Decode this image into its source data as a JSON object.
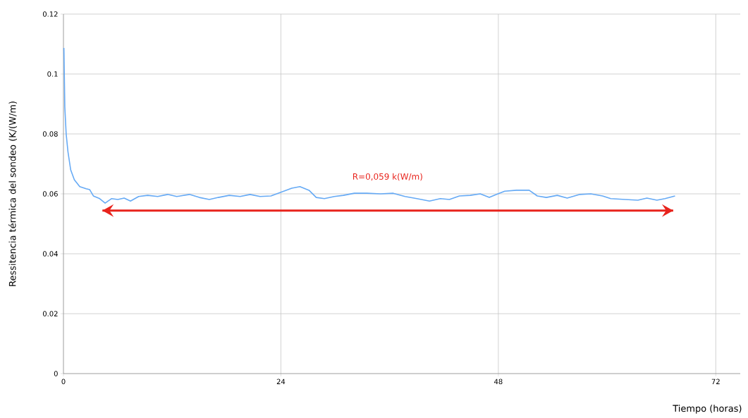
{
  "chart_data": {
    "type": "line",
    "xlabel": "Tiempo (horas)",
    "ylabel": "Ressitencia térmica del sondeo (K/(W/m)",
    "x": [
      0.05,
      0.15,
      0.3,
      0.5,
      0.8,
      1.2,
      1.8,
      2.5,
      2.9,
      3.3,
      4.0,
      4.6,
      5.3,
      6.0,
      6.7,
      7.4,
      8.3,
      9.3,
      10.4,
      11.5,
      12.5,
      13.9,
      15.0,
      16.1,
      17.1,
      18.3,
      19.5,
      20.6,
      21.7,
      22.9,
      24.0,
      25.2,
      26.1,
      27.1,
      27.9,
      28.8,
      29.9,
      30.9,
      32.1,
      33.5,
      35.0,
      36.4,
      37.7,
      39.0,
      40.4,
      41.6,
      42.6,
      43.7,
      44.9,
      46.0,
      47.0,
      47.8,
      48.7,
      50.0,
      51.4,
      52.3,
      53.3,
      54.5,
      55.6,
      57.0,
      58.2,
      59.5,
      60.4,
      62.0,
      63.4,
      64.4,
      65.5,
      66.4,
      67.5
    ],
    "series": [
      {
        "color": "#66aaf5",
        "values": [
          0.1087,
          0.089,
          0.08,
          0.074,
          0.068,
          0.0647,
          0.0624,
          0.0617,
          0.0614,
          0.0593,
          0.0584,
          0.0569,
          0.0584,
          0.0581,
          0.0586,
          0.0576,
          0.0591,
          0.0595,
          0.0591,
          0.0598,
          0.0591,
          0.0598,
          0.0588,
          0.0581,
          0.0588,
          0.0595,
          0.0591,
          0.0598,
          0.0591,
          0.0593,
          0.0605,
          0.0619,
          0.0624,
          0.0612,
          0.0588,
          0.0584,
          0.0591,
          0.0595,
          0.0602,
          0.0602,
          0.06,
          0.0602,
          0.0591,
          0.0584,
          0.0576,
          0.0584,
          0.0581,
          0.0593,
          0.0595,
          0.06,
          0.0588,
          0.0598,
          0.0609,
          0.0612,
          0.0612,
          0.0593,
          0.0588,
          0.0595,
          0.0586,
          0.0598,
          0.06,
          0.0593,
          0.0584,
          0.0581,
          0.0579,
          0.0586,
          0.0579,
          0.0584,
          0.0593
        ]
      },
      {
        "color": "#e8231c",
        "line_style": "solid",
        "x": [
          4.3,
          67.3
        ],
        "values": [
          0.0544,
          0.0544
        ]
      }
    ],
    "xlim": [
      0,
      74.7
    ],
    "ylim": [
      0,
      0.12
    ],
    "xticks": [
      0,
      24,
      48,
      72
    ],
    "yticks": [
      0,
      0.02,
      0.04,
      0.06,
      0.08,
      0.1,
      0.12
    ],
    "grid": true,
    "annotations": [
      "R=0,059 k(W/m)"
    ]
  }
}
